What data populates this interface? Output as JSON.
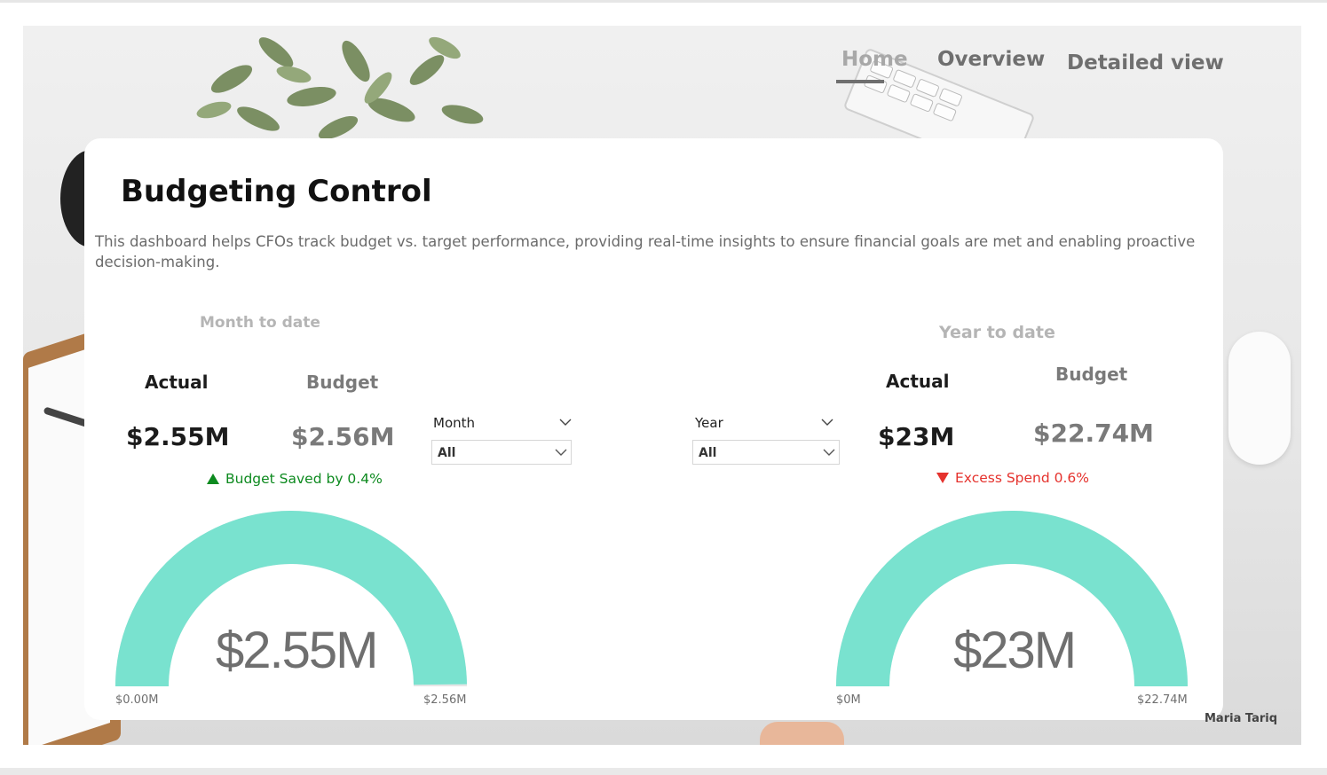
{
  "nav": {
    "home": "Home",
    "overview": "Overview",
    "detailed": "Detailed view"
  },
  "header": {
    "title": "Budgeting Control",
    "description": "This dashboard helps CFOs track budget vs. target performance, providing real-time insights to ensure financial goals are met and enabling proactive decision-making."
  },
  "mtd": {
    "section_label": "Month to date",
    "actual_label": "Actual",
    "actual_value": "$2.55M",
    "budget_label": "Budget",
    "budget_value": "$2.56M",
    "delta_text": "Budget Saved by 0.4%",
    "slicer_label": "Month",
    "slicer_value": "All"
  },
  "ytd": {
    "section_label": "Year to date",
    "actual_label": "Actual",
    "actual_value": "$23M",
    "budget_label": "Budget",
    "budget_value": "$22.74M",
    "delta_text": "Excess Spend 0.6%",
    "slicer_label": "Year",
    "slicer_value": "All"
  },
  "chart_data": [
    {
      "type": "gauge",
      "value": 2.55,
      "min": 0,
      "max": 2.56,
      "value_label": "$2.55M",
      "min_label": "$0.00M",
      "max_label": "$2.56M",
      "color": "#79e2cf"
    },
    {
      "type": "gauge",
      "value": 23,
      "min": 0,
      "max": 22.74,
      "value_label": "$23M",
      "min_label": "$0M",
      "max_label": "$22.74M",
      "color": "#79e2cf"
    }
  ],
  "footer": {
    "signature": "Maria Tariq"
  },
  "colors": {
    "accent": "#79e2cf",
    "positive": "#0d8a1f",
    "negative": "#e5322d"
  }
}
